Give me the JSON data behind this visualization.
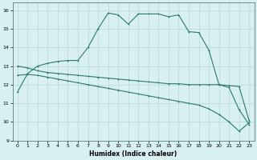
{
  "xlabel": "Humidex (Indice chaleur)",
  "bg_color": "#d8f0f0",
  "grid_color": "#b8d8d8",
  "line_color": "#2a7a6a",
  "xlim": [
    -0.5,
    23.5
  ],
  "ylim": [
    9,
    16.4
  ],
  "xticks": [
    0,
    1,
    2,
    3,
    4,
    5,
    6,
    7,
    8,
    9,
    10,
    11,
    12,
    13,
    14,
    15,
    16,
    17,
    18,
    19,
    20,
    21,
    22,
    23
  ],
  "yticks": [
    9,
    10,
    11,
    12,
    13,
    14,
    15,
    16
  ],
  "line1_x": [
    0,
    1,
    2,
    3,
    4,
    5,
    6,
    7,
    8,
    9,
    10,
    11,
    12,
    13,
    14,
    15,
    16,
    17,
    18,
    19,
    20,
    21,
    22,
    23
  ],
  "line1_y": [
    11.6,
    12.6,
    13.0,
    13.15,
    13.25,
    13.3,
    13.3,
    14.0,
    15.0,
    15.85,
    15.75,
    15.25,
    15.8,
    15.8,
    15.8,
    15.65,
    15.75,
    14.85,
    14.8,
    13.85,
    12.0,
    11.85,
    10.65,
    9.85
  ],
  "line2_x": [
    0,
    1,
    2,
    3,
    4,
    5,
    6,
    7,
    8,
    9,
    10,
    11,
    12,
    13,
    14,
    15,
    16,
    17,
    18,
    19,
    20,
    21,
    22,
    23
  ],
  "line2_y": [
    13.0,
    12.9,
    12.75,
    12.65,
    12.6,
    12.55,
    12.5,
    12.45,
    12.4,
    12.35,
    12.3,
    12.25,
    12.2,
    12.15,
    12.1,
    12.05,
    12.05,
    12.0,
    12.0,
    12.0,
    12.0,
    11.95,
    11.9,
    10.05
  ],
  "line3_x": [
    0,
    1,
    2,
    3,
    4,
    5,
    6,
    7,
    8,
    9,
    10,
    11,
    12,
    13,
    14,
    15,
    16,
    17,
    18,
    19,
    20,
    21,
    22,
    23
  ],
  "line3_y": [
    12.5,
    12.55,
    12.5,
    12.4,
    12.3,
    12.2,
    12.1,
    12.0,
    11.9,
    11.8,
    11.7,
    11.6,
    11.5,
    11.4,
    11.3,
    11.2,
    11.1,
    11.0,
    10.9,
    10.7,
    10.4,
    10.0,
    9.5,
    9.95
  ]
}
